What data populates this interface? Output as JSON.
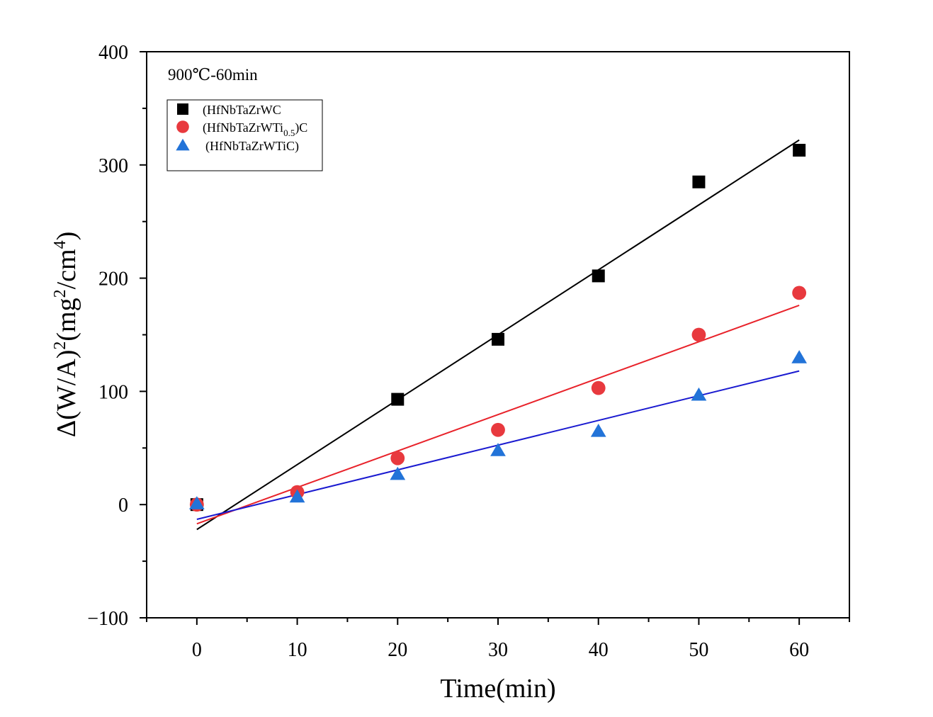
{
  "chart_data": {
    "type": "scatter",
    "annotation": "900℃-60min",
    "xlabel": "Time(min)",
    "ylabel": {
      "delta": "Δ",
      "main": "(W/A)",
      "sup1": "2",
      "units_open": "(mg",
      "sup2": "2",
      "units_mid": "/cm",
      "sup3": "4",
      "units_close": ")"
    },
    "xlim": [
      -5,
      65
    ],
    "ylim": [
      -100,
      400
    ],
    "xticks": [
      0,
      10,
      20,
      30,
      40,
      50,
      60
    ],
    "xtick_labels": [
      "0",
      "10",
      "20",
      "30",
      "40",
      "50",
      "60"
    ],
    "yticks": [
      -100,
      0,
      100,
      200,
      300,
      400
    ],
    "ytick_labels": [
      "−100",
      "0",
      "100",
      "200",
      "300",
      "400"
    ],
    "legend_position": "top-left",
    "grid": false,
    "series": [
      {
        "name": "(HfNbTaZrWC",
        "marker": "square",
        "color": "#000000",
        "line_color": "#000000",
        "x": [
          0,
          20,
          30,
          40,
          50,
          60
        ],
        "y": [
          0,
          93,
          146,
          202,
          285,
          313
        ],
        "fit": {
          "x": [
            0,
            60
          ],
          "y": [
            -22,
            322
          ]
        }
      },
      {
        "name": "(HfNbTaZrWTi0.5)C",
        "name_parts": {
          "base": "(HfNbTaZrWTi",
          "sub": "0.5",
          "tail": ")C"
        },
        "marker": "circle",
        "color": "#e8393e",
        "line_color": "#e8222a",
        "x": [
          0,
          10,
          20,
          30,
          40,
          50,
          60
        ],
        "y": [
          0,
          11,
          41,
          66,
          103,
          150,
          187
        ],
        "fit": {
          "x": [
            0,
            60
          ],
          "y": [
            -17,
            176
          ]
        }
      },
      {
        "name": "(HfNbTaZrWTiC)",
        "marker": "triangle",
        "color": "#2273d8",
        "line_color": "#1a1ad0",
        "x": [
          0,
          10,
          20,
          30,
          40,
          50,
          60
        ],
        "y": [
          1,
          7,
          27,
          48,
          65,
          97,
          130
        ],
        "fit": {
          "x": [
            0,
            60
          ],
          "y": [
            -13,
            118
          ]
        }
      }
    ]
  }
}
